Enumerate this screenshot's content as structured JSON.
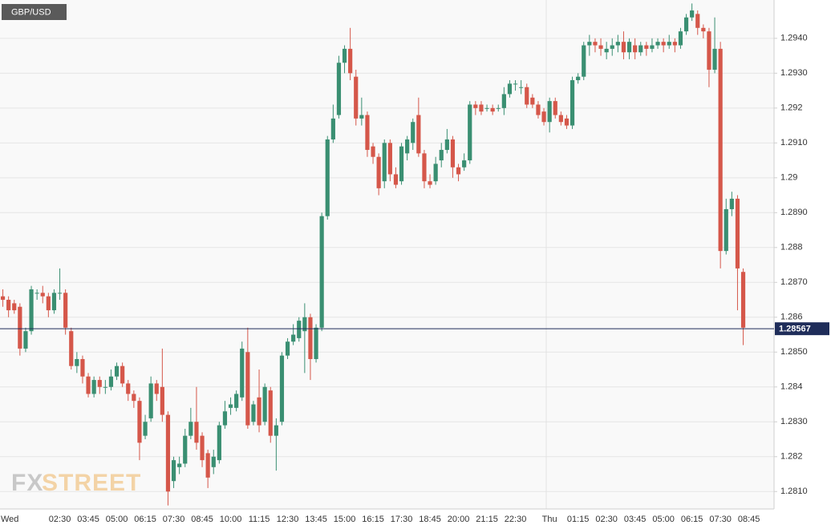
{
  "chart_data": {
    "type": "candlestick",
    "title": "GBP/USD",
    "watermark": [
      "FX",
      "STREET"
    ],
    "up_color": "#3a8f72",
    "down_color": "#d5574a",
    "ylim": [
      1.2805,
      1.2951
    ],
    "yticks": [
      {
        "value": 1.281,
        "label": "1.2810"
      },
      1.282,
      {
        "value": 1.283,
        "label": "1.2830"
      },
      1.284,
      {
        "value": 1.285,
        "label": "1.2850"
      },
      1.286,
      {
        "value": 1.287,
        "label": "1.2870"
      },
      1.288,
      {
        "value": 1.289,
        "label": "1.2890"
      },
      1.29,
      {
        "value": 1.291,
        "label": "1.2910"
      },
      1.292,
      {
        "value": 1.293,
        "label": "1.2930"
      },
      {
        "value": 1.294,
        "label": "1.2940"
      }
    ],
    "last_price": 1.28567,
    "grid": true,
    "categories": [
      "Wed",
      null,
      null,
      null,
      null,
      null,
      null,
      null,
      null,
      null,
      "02:30",
      null,
      null,
      null,
      null,
      "03:45",
      null,
      null,
      null,
      null,
      "05:00",
      null,
      null,
      null,
      null,
      "06:15",
      null,
      null,
      null,
      null,
      "07:30",
      null,
      null,
      null,
      null,
      "08:45",
      null,
      null,
      null,
      null,
      "10:00",
      null,
      null,
      null,
      null,
      "11:15",
      null,
      null,
      null,
      null,
      "12:30",
      null,
      null,
      null,
      null,
      "13:45",
      null,
      null,
      null,
      null,
      "15:00",
      null,
      null,
      null,
      null,
      "16:15",
      null,
      null,
      null,
      null,
      "17:30",
      null,
      null,
      null,
      null,
      "18:45",
      null,
      null,
      null,
      null,
      "20:00",
      null,
      null,
      null,
      null,
      "21:15",
      null,
      null,
      null,
      null,
      "22:30",
      null,
      null,
      null,
      null,
      null,
      "Thu",
      null,
      null,
      null,
      null,
      "01:15",
      null,
      null,
      null,
      null,
      "02:30",
      null,
      null,
      null,
      null,
      "03:45",
      null,
      null,
      null,
      null,
      "05:00",
      null,
      null,
      null,
      null,
      "06:15",
      null,
      null,
      null,
      null,
      "07:30",
      null,
      null,
      null,
      null,
      "08:45"
    ],
    "open": [
      1.2866,
      1.2865,
      1.2864,
      1.2863,
      1.2851,
      1.2856,
      1.2867,
      1.2867,
      1.2866,
      1.2862,
      1.2867,
      1.2867,
      1.2856,
      1.2846,
      1.2848,
      1.2843,
      1.2838,
      1.2842,
      1.284,
      1.284,
      1.2843,
      1.2846,
      1.2841,
      1.2838,
      1.2836,
      1.2826,
      1.2831,
      1.2841,
      1.284,
      1.2832,
      1.2813,
      1.2817,
      1.2818,
      1.2826,
      1.283,
      1.2826,
      1.2821,
      1.2817,
      1.2819,
      1.2829,
      1.2834,
      1.2834,
      1.2837,
      1.285,
      1.283,
      1.2837,
      1.283,
      1.2839,
      1.2826,
      1.283,
      1.2849,
      1.2853,
      1.2854,
      1.2856,
      1.286,
      1.2848,
      1.2857,
      1.2889,
      1.2911,
      1.2918,
      1.2933,
      1.2937,
      1.2929,
      1.2917,
      1.2918,
      1.2909,
      1.2906,
      1.2899,
      1.291,
      1.2901,
      1.2899,
      1.2907,
      1.291,
      1.2918,
      1.2907,
      1.2899,
      1.2899,
      1.2905,
      1.2908,
      1.2911,
      1.2903,
      1.2903,
      1.2905,
      1.2921,
      1.2921,
      1.292,
      1.292,
      1.292,
      1.292,
      1.2924,
      1.2927,
      1.2926,
      1.2926,
      1.2923,
      1.2921,
      1.2919,
      1.2916,
      1.2922,
      1.2918,
      1.2917,
      1.2915,
      1.2928,
      1.2929,
      1.2938,
      1.2939,
      1.2938,
      1.2936,
      1.2937,
      1.2938,
      1.2939,
      1.2936,
      1.2938,
      1.2936,
      1.2938,
      1.2937,
      1.2938,
      1.2939,
      1.2938,
      1.2939,
      1.2938,
      1.2942,
      1.2946,
      1.2947,
      1.2943,
      1.2942,
      1.2931,
      1.2937,
      1.2879,
      1.2891,
      1.2894,
      1.2873,
      null
    ],
    "high": [
      1.2868,
      1.2866,
      1.2865,
      1.2864,
      1.2857,
      1.2869,
      1.2868,
      1.2869,
      1.2867,
      1.2868,
      1.2874,
      1.2868,
      1.2857,
      1.285,
      1.2849,
      1.2844,
      1.2843,
      1.2843,
      1.2842,
      1.2845,
      1.2847,
      1.2847,
      1.2842,
      1.2839,
      1.2837,
      1.2832,
      1.2843,
      1.2842,
      1.2851,
      1.2833,
      1.282,
      1.282,
      1.2828,
      1.2834,
      1.284,
      1.2827,
      1.2822,
      1.2822,
      1.283,
      1.2836,
      1.2837,
      1.2839,
      1.2853,
      1.2857,
      1.2836,
      1.2845,
      1.2841,
      1.284,
      1.2831,
      1.285,
      1.2854,
      1.2858,
      1.286,
      1.2864,
      1.2861,
      1.2858,
      1.289,
      1.2912,
      1.2921,
      1.2935,
      1.2938,
      1.2943,
      1.2931,
      1.2923,
      1.2919,
      1.291,
      1.2907,
      1.2911,
      1.2911,
      1.2903,
      1.291,
      1.2912,
      1.2917,
      1.2923,
      1.2908,
      1.2901,
      1.2906,
      1.291,
      1.2914,
      1.2912,
      1.2904,
      1.2907,
      1.2922,
      1.2922,
      1.2922,
      1.2921,
      1.2921,
      1.2921,
      1.2926,
      1.2928,
      1.2928,
      1.2928,
      1.2927,
      1.2924,
      1.2922,
      1.292,
      1.2923,
      1.2923,
      1.2919,
      1.2918,
      1.2929,
      1.293,
      1.2939,
      1.2941,
      1.294,
      1.294,
      1.2939,
      1.294,
      1.2941,
      1.2942,
      1.294,
      1.294,
      1.2939,
      1.2939,
      1.294,
      1.294,
      1.294,
      1.2941,
      1.294,
      1.2943,
      1.2947,
      1.295,
      1.2948,
      1.2944,
      1.2943,
      1.2946,
      1.2939,
      1.2894,
      1.2896,
      1.2895,
      1.2874,
      null
    ],
    "low": [
      1.2863,
      1.286,
      1.2861,
      1.2849,
      1.285,
      1.2855,
      1.2865,
      1.2864,
      1.286,
      1.2861,
      1.2865,
      1.2855,
      1.2845,
      1.2844,
      1.2841,
      1.2837,
      1.2837,
      1.2838,
      1.2838,
      1.2839,
      1.2842,
      1.284,
      1.2836,
      1.2834,
      1.2819,
      1.2825,
      1.283,
      1.2836,
      1.283,
      1.2806,
      1.2811,
      1.2815,
      1.2817,
      1.2825,
      1.2822,
      1.2817,
      1.2811,
      1.2815,
      1.2818,
      1.2828,
      1.2832,
      1.2833,
      1.2836,
      1.2828,
      1.2829,
      1.2827,
      1.2829,
      1.2824,
      1.2816,
      1.2829,
      1.2848,
      1.2852,
      1.2853,
      1.2844,
      1.2842,
      1.2847,
      1.2856,
      1.2888,
      1.291,
      1.2917,
      1.293,
      1.2928,
      1.2915,
      1.2915,
      1.2906,
      1.2904,
      1.2895,
      1.2897,
      1.2899,
      1.2897,
      1.2898,
      1.2905,
      1.2908,
      1.2906,
      1.2897,
      1.2897,
      1.2898,
      1.2903,
      1.2907,
      1.29,
      1.2899,
      1.2902,
      1.2904,
      1.2918,
      1.2918,
      1.2919,
      1.2918,
      1.2919,
      1.2918,
      1.2923,
      1.2925,
      1.2924,
      1.292,
      1.292,
      1.2917,
      1.2915,
      1.2913,
      1.2917,
      1.2915,
      1.2914,
      1.2914,
      1.2927,
      1.2928,
      1.2935,
      1.2936,
      1.2935,
      1.2934,
      1.2935,
      1.2936,
      1.2934,
      1.2934,
      1.2934,
      1.2935,
      1.2935,
      1.2936,
      1.2937,
      1.2936,
      1.2937,
      1.2936,
      1.2937,
      1.2941,
      1.2945,
      1.2941,
      1.294,
      1.2926,
      1.293,
      1.2874,
      1.2878,
      1.2889,
      1.2862,
      1.2852,
      null
    ],
    "close": [
      1.2865,
      1.2862,
      1.2862,
      1.2851,
      1.2856,
      1.2868,
      1.2867,
      1.2866,
      1.2862,
      1.2867,
      1.2867,
      1.2857,
      1.2846,
      1.2848,
      1.2843,
      1.2838,
      1.2842,
      1.284,
      1.284,
      1.2843,
      1.2846,
      1.2841,
      1.2838,
      1.2836,
      1.2824,
      1.283,
      1.2841,
      1.2838,
      1.2832,
      1.281,
      1.2819,
      1.2818,
      1.2826,
      1.283,
      1.2824,
      1.2819,
      1.2814,
      1.282,
      1.2829,
      1.2833,
      1.2835,
      1.2838,
      1.2851,
      1.2829,
      1.2835,
      1.2829,
      1.284,
      1.2826,
      1.2829,
      1.2849,
      1.2853,
      1.2855,
      1.2859,
      1.286,
      1.2848,
      1.2857,
      1.2889,
      1.2911,
      1.2917,
      1.2933,
      1.2937,
      1.293,
      1.2917,
      1.2918,
      1.2908,
      1.2906,
      1.2897,
      1.291,
      1.2901,
      1.2898,
      1.2909,
      1.2911,
      1.2916,
      1.2907,
      1.2899,
      1.2898,
      1.2904,
      1.2908,
      1.2911,
      1.2903,
      1.2901,
      1.2905,
      1.2921,
      1.292,
      1.2919,
      1.292,
      1.2919,
      1.292,
      1.2924,
      1.2927,
      1.2927,
      1.2926,
      1.2921,
      1.2921,
      1.2918,
      1.2916,
      1.2922,
      1.2918,
      1.2916,
      1.2915,
      1.2928,
      1.2929,
      1.2938,
      1.2939,
      1.2938,
      1.2937,
      1.2937,
      1.2938,
      1.2939,
      1.2936,
      1.2939,
      1.2936,
      1.2938,
      1.2937,
      1.2938,
      1.2939,
      1.2938,
      1.2939,
      1.2938,
      1.2942,
      1.2946,
      1.2948,
      1.2943,
      1.2942,
      1.2931,
      1.2937,
      1.2879,
      1.2891,
      1.2894,
      1.2874,
      1.2857,
      null
    ]
  }
}
